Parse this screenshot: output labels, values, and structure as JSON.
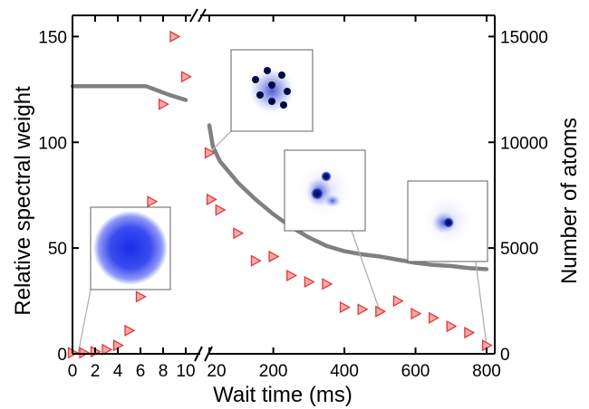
{
  "chart_data": {
    "type": "scatter",
    "title": "",
    "xlabel": "Wait time (ms)",
    "ylabel": "Relative spectral weight",
    "y2label": "Number of atoms",
    "x_axis_broken": true,
    "x_segments": [
      {
        "range": [
          0,
          10
        ],
        "ticks": [
          0,
          2,
          4,
          6,
          8,
          10
        ]
      },
      {
        "range": [
          20,
          800
        ],
        "ticks": [
          20,
          200,
          400,
          600,
          800
        ]
      }
    ],
    "ylim": [
      0,
      160
    ],
    "yticks": [
      0,
      50,
      100,
      150
    ],
    "y2lim": [
      0,
      16000
    ],
    "y2ticks": [
      0,
      5000,
      10000,
      15000
    ],
    "grid": false,
    "legend": "none",
    "series": [
      {
        "axis": "left",
        "marker": "triangle-right",
        "color": "#e03a3a",
        "fill": "#f4a9a9",
        "points": [
          {
            "x": 0,
            "y": 0.5
          },
          {
            "x": 1,
            "y": 0.5
          },
          {
            "x": 2,
            "y": 1
          },
          {
            "x": 3,
            "y": 2
          },
          {
            "x": 4,
            "y": 4
          },
          {
            "x": 5,
            "y": 11
          },
          {
            "x": 6,
            "y": 27
          },
          {
            "x": 7,
            "y": 72
          },
          {
            "x": 8,
            "y": 118
          },
          {
            "x": 9,
            "y": 150
          },
          {
            "x": 10,
            "y": 131
          },
          {
            "x": 20,
            "y": 95
          },
          {
            "x": 25,
            "y": 73
          },
          {
            "x": 50,
            "y": 68
          },
          {
            "x": 100,
            "y": 57
          },
          {
            "x": 150,
            "y": 44
          },
          {
            "x": 200,
            "y": 46
          },
          {
            "x": 250,
            "y": 37
          },
          {
            "x": 300,
            "y": 34
          },
          {
            "x": 350,
            "y": 33
          },
          {
            "x": 400,
            "y": 22
          },
          {
            "x": 450,
            "y": 21
          },
          {
            "x": 500,
            "y": 20
          },
          {
            "x": 550,
            "y": 25
          },
          {
            "x": 600,
            "y": 19
          },
          {
            "x": 650,
            "y": 17
          },
          {
            "x": 700,
            "y": 13
          },
          {
            "x": 750,
            "y": 10
          },
          {
            "x": 800,
            "y": 4
          }
        ]
      },
      {
        "axis": "right",
        "type": "line",
        "color": "#808080",
        "segments": [
          [
            {
              "x": 0,
              "y": 12650
            },
            {
              "x": 6.5,
              "y": 12650
            },
            {
              "x": 7.5,
              "y": 12450
            },
            {
              "x": 8.5,
              "y": 12250
            },
            {
              "x": 10,
              "y": 12000
            }
          ],
          [
            {
              "x": 20,
              "y": 10800
            },
            {
              "x": 30,
              "y": 9800
            },
            {
              "x": 50,
              "y": 9100
            },
            {
              "x": 75,
              "y": 8600
            },
            {
              "x": 100,
              "y": 8100
            },
            {
              "x": 150,
              "y": 7300
            },
            {
              "x": 200,
              "y": 6600
            },
            {
              "x": 250,
              "y": 6000
            },
            {
              "x": 300,
              "y": 5500
            },
            {
              "x": 350,
              "y": 5100
            },
            {
              "x": 400,
              "y": 4850
            },
            {
              "x": 450,
              "y": 4700
            },
            {
              "x": 500,
              "y": 4600
            },
            {
              "x": 550,
              "y": 4450
            },
            {
              "x": 600,
              "y": 4300
            },
            {
              "x": 650,
              "y": 4200
            },
            {
              "x": 700,
              "y": 4150
            },
            {
              "x": 750,
              "y": 4050
            },
            {
              "x": 800,
              "y": 4000
            }
          ]
        ]
      }
    ],
    "insets": [
      {
        "kind": "diffuse-cloud",
        "anchor": {
          "x": 0.5,
          "y": 0
        }
      },
      {
        "kind": "vortex-lattice",
        "anchor": {
          "x": 20,
          "y": 95
        }
      },
      {
        "kind": "few-vortices",
        "anchor": {
          "x": 500,
          "y": 20
        }
      },
      {
        "kind": "single-vortex",
        "anchor": {
          "x": 800,
          "y": 4
        }
      }
    ]
  }
}
